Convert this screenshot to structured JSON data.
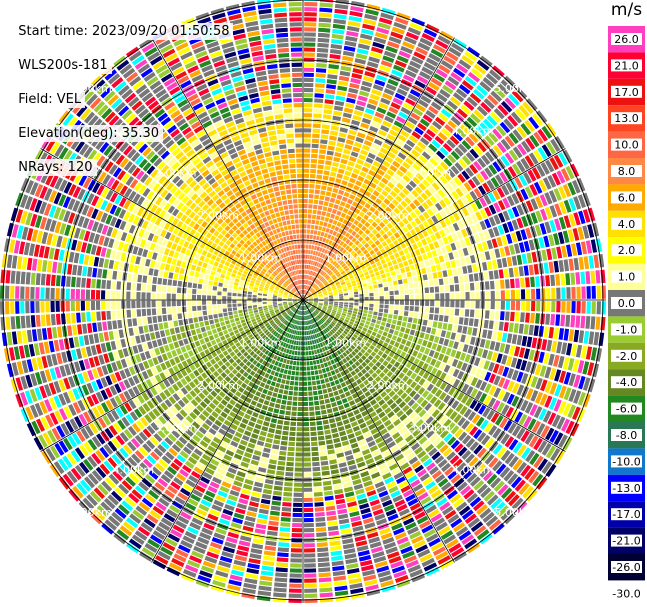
{
  "header": {
    "start_time": "Start time: 2023/09/20 01:50:58",
    "instrument": "WLS200s-181",
    "field": "Field: VEL",
    "elevation": "Elevation(deg): 35.30",
    "nrays": "NRays: 120"
  },
  "colorbar": {
    "unit": "m/s",
    "ticks": [
      "26.0",
      "21.0",
      "17.0",
      "13.0",
      "10.0",
      "8.0",
      "6.0",
      "4.0",
      "2.0",
      "1.0",
      "0.0",
      "-1.0",
      "-2.0",
      "-4.0",
      "-6.0",
      "-8.0",
      "-10.0",
      "-13.0",
      "-17.0",
      "-21.0",
      "-26.0",
      "-30.0"
    ],
    "colors": [
      "#ff3fbf",
      "#ff0033",
      "#ee1111",
      "#ff4422",
      "#ff6644",
      "#ff8844",
      "#ffaa00",
      "#ffe000",
      "#ffff00",
      "#ffff99",
      "#777777",
      "#99cc33",
      "#88aa22",
      "#668822",
      "#228822",
      "#2a7755",
      "#1177cc",
      "#0000ff",
      "#0000aa",
      "#000066",
      "#000033"
    ]
  },
  "chart_data": {
    "type": "heatmap",
    "projection": "ppi-polar",
    "field": "VEL",
    "unit": "m/s",
    "nrays": 120,
    "range_ring_labels": [
      "1.00km",
      "2.00km",
      "3.00km",
      "4.00km",
      "5.00km"
    ],
    "range_rings_km": [
      1,
      2,
      3,
      4,
      5
    ],
    "color_scale_m_s": [
      -30,
      -26,
      -21,
      -17,
      -13,
      -10,
      -8,
      -6,
      -4,
      -2,
      -1,
      0,
      1,
      2,
      4,
      6,
      8,
      10,
      13,
      17,
      21,
      26
    ],
    "pattern": "positive velocities (yellow-orange) north of radar, negative (green) south, noisy beyond ~3.3 km"
  }
}
